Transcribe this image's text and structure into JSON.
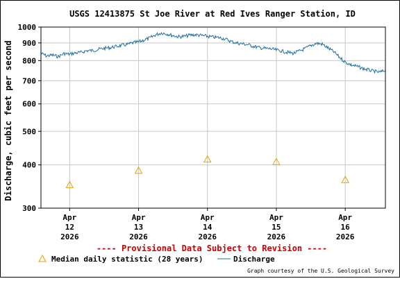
{
  "chart_data": {
    "type": "line",
    "title": "USGS 12413875 St Joe River at Red Ives Ranger Station, ID",
    "ylabel": "Discharge, cubic feet per second",
    "y_scale": "log",
    "ylim": [
      300,
      1000
    ],
    "xlim": [
      "2026-04-11T14:00",
      "2026-04-16T14:00"
    ],
    "y_ticks": [
      300,
      400,
      500,
      600,
      700,
      800,
      900,
      1000
    ],
    "x_ticks": [
      {
        "date": "2026-04-12T00:00",
        "line1": "Apr",
        "line2": "12",
        "line3": "2026"
      },
      {
        "date": "2026-04-13T00:00",
        "line1": "Apr",
        "line2": "13",
        "line3": "2026"
      },
      {
        "date": "2026-04-14T00:00",
        "line1": "Apr",
        "line2": "14",
        "line3": "2026"
      },
      {
        "date": "2026-04-15T00:00",
        "line1": "Apr",
        "line2": "15",
        "line3": "2026"
      },
      {
        "date": "2026-04-16T00:00",
        "line1": "Apr",
        "line2": "16",
        "line3": "2026"
      }
    ],
    "grid": true,
    "series": [
      {
        "name": "Discharge",
        "color": "#1f6fa0",
        "style": "line",
        "points": [
          [
            "2026-04-11T14:00",
            840
          ],
          [
            "2026-04-11T16:00",
            825
          ],
          [
            "2026-04-11T18:00",
            830
          ],
          [
            "2026-04-11T20:00",
            822
          ],
          [
            "2026-04-11T22:00",
            838
          ],
          [
            "2026-04-12T00:00",
            835
          ],
          [
            "2026-04-12T02:00",
            842
          ],
          [
            "2026-04-12T04:00",
            845
          ],
          [
            "2026-04-12T06:00",
            855
          ],
          [
            "2026-04-12T08:00",
            855
          ],
          [
            "2026-04-12T10:00",
            862
          ],
          [
            "2026-04-12T12:00",
            868
          ],
          [
            "2026-04-12T14:00",
            872
          ],
          [
            "2026-04-12T16:00",
            878
          ],
          [
            "2026-04-12T18:00",
            885
          ],
          [
            "2026-04-12T20:00",
            890
          ],
          [
            "2026-04-12T22:00",
            900
          ],
          [
            "2026-04-13T00:00",
            905
          ],
          [
            "2026-04-13T02:00",
            918
          ],
          [
            "2026-04-13T04:00",
            930
          ],
          [
            "2026-04-13T06:00",
            950
          ],
          [
            "2026-04-13T08:00",
            962
          ],
          [
            "2026-04-13T10:00",
            955
          ],
          [
            "2026-04-13T12:00",
            945
          ],
          [
            "2026-04-13T14:00",
            938
          ],
          [
            "2026-04-13T16:00",
            940
          ],
          [
            "2026-04-13T18:00",
            948
          ],
          [
            "2026-04-13T20:00",
            950
          ],
          [
            "2026-04-13T22:00",
            945
          ],
          [
            "2026-04-14T00:00",
            940
          ],
          [
            "2026-04-14T02:00",
            935
          ],
          [
            "2026-04-14T04:00",
            932
          ],
          [
            "2026-04-14T06:00",
            925
          ],
          [
            "2026-04-14T08:00",
            910
          ],
          [
            "2026-04-14T10:00",
            900
          ],
          [
            "2026-04-14T12:00",
            895
          ],
          [
            "2026-04-14T14:00",
            890
          ],
          [
            "2026-04-14T16:00",
            880
          ],
          [
            "2026-04-14T18:00",
            872
          ],
          [
            "2026-04-14T20:00",
            868
          ],
          [
            "2026-04-14T22:00",
            865
          ],
          [
            "2026-04-15T00:00",
            858
          ],
          [
            "2026-04-15T02:00",
            852
          ],
          [
            "2026-04-15T04:00",
            845
          ],
          [
            "2026-04-15T06:00",
            840
          ],
          [
            "2026-04-15T08:00",
            852
          ],
          [
            "2026-04-15T10:00",
            866
          ],
          [
            "2026-04-15T12:00",
            884
          ],
          [
            "2026-04-15T14:00",
            898
          ],
          [
            "2026-04-15T16:00",
            892
          ],
          [
            "2026-04-15T18:00",
            870
          ],
          [
            "2026-04-15T20:00",
            848
          ],
          [
            "2026-04-15T22:00",
            818
          ],
          [
            "2026-04-16T00:00",
            792
          ],
          [
            "2026-04-16T02:00",
            778
          ],
          [
            "2026-04-16T04:00",
            770
          ],
          [
            "2026-04-16T06:00",
            760
          ],
          [
            "2026-04-16T08:00",
            752
          ],
          [
            "2026-04-16T10:00",
            745
          ],
          [
            "2026-04-16T12:00",
            740
          ],
          [
            "2026-04-16T14:00",
            750
          ]
        ]
      },
      {
        "name": "Median daily statistic (28 years)",
        "color": "#e8a000",
        "style": "marker-triangle",
        "points": [
          [
            "2026-04-12T00:00",
            350
          ],
          [
            "2026-04-13T00:00",
            385
          ],
          [
            "2026-04-14T00:00",
            415
          ],
          [
            "2026-04-15T00:00",
            408
          ],
          [
            "2026-04-16T00:00",
            362
          ]
        ]
      }
    ],
    "legend": [
      {
        "label": "Median daily statistic (28 years)",
        "symbol": "triangle",
        "color": "#e8a000"
      },
      {
        "label": "Discharge",
        "symbol": "line",
        "color": "#1f6fa0"
      }
    ],
    "legend_position": "bottom",
    "annotation": "---- Provisional Data Subject to Revision ----",
    "credit": "Graph courtesy of the U.S. Geological Survey"
  }
}
